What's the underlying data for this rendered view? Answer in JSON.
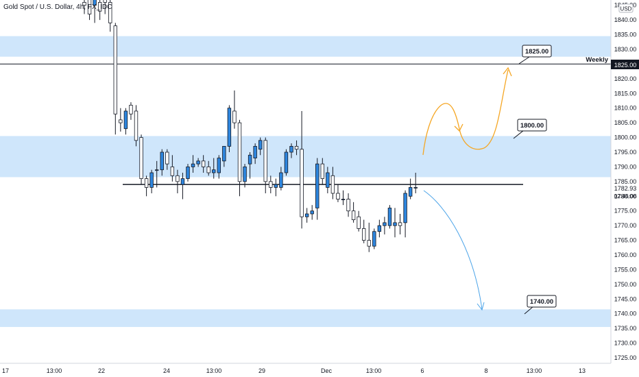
{
  "header": {
    "symbol_title": "Gold Spot / U.S. Dollar, 4h, FX_IDC",
    "currency": "USD"
  },
  "price_axis": {
    "last_price": "1782.93",
    "countdown": "02:46:06",
    "weekly_level": "1825.00"
  },
  "annotations": {
    "weekly_label": "Weekly",
    "target_upper": "1825.00",
    "target_mid": "1800.00",
    "target_lower": "1740.00"
  },
  "colors": {
    "zone": "#cfe6fb",
    "bull_candle": "#2e86de",
    "bear_candle": "#ffffff",
    "wick": "#131722",
    "up_path": "#f5a623",
    "down_path": "#4aa3e8"
  },
  "chart_data": {
    "type": "candlestick",
    "title": "Gold Spot / U.S. Dollar, 4h, FX_IDC",
    "ylim": [
      1722,
      1849
    ],
    "y_ticks": [
      "1845.00",
      "1840.00",
      "1835.00",
      "1830.00",
      "1825.00",
      "1820.00",
      "1815.00",
      "1810.00",
      "1805.00",
      "1800.00",
      "1795.00",
      "1790.00",
      "1785.00",
      "1780.00",
      "1775.00",
      "1770.00",
      "1765.00",
      "1760.00",
      "1755.00",
      "1750.00",
      "1745.00",
      "1740.00",
      "1735.00",
      "1730.00",
      "1725.00"
    ],
    "x_ticks": [
      "17",
      "13:00",
      "22",
      "24",
      "13:00",
      "29",
      "Dec",
      "13:00",
      "6",
      "8",
      "13:00",
      "13"
    ],
    "zones": [
      {
        "low": 1827.5,
        "high": 1834.5
      },
      {
        "low": 1786.5,
        "high": 1800.5
      },
      {
        "low": 1735.5,
        "high": 1741.5
      }
    ],
    "horizontal_lines": [
      {
        "price": 1825.0,
        "label": "Weekly"
      },
      {
        "price": 1784.0,
        "label": ""
      }
    ],
    "candles": [
      {
        "o": 1846,
        "h": 1849,
        "l": 1842,
        "c": 1845
      },
      {
        "o": 1847,
        "h": 1849,
        "l": 1840,
        "c": 1842
      },
      {
        "o": 1845,
        "h": 1849,
        "l": 1839,
        "c": 1848
      },
      {
        "o": 1846,
        "h": 1849,
        "l": 1840,
        "c": 1843
      },
      {
        "o": 1848,
        "h": 1849,
        "l": 1842,
        "c": 1846
      },
      {
        "o": 1846,
        "h": 1849,
        "l": 1836,
        "c": 1839
      },
      {
        "o": 1838,
        "h": 1839,
        "l": 1801,
        "c": 1808
      },
      {
        "o": 1806,
        "h": 1810,
        "l": 1802,
        "c": 1805
      },
      {
        "o": 1803,
        "h": 1810,
        "l": 1801,
        "c": 1809
      },
      {
        "o": 1811,
        "h": 1812,
        "l": 1806,
        "c": 1808
      },
      {
        "o": 1809,
        "h": 1811,
        "l": 1797,
        "c": 1799
      },
      {
        "o": 1800,
        "h": 1801,
        "l": 1784,
        "c": 1786
      },
      {
        "o": 1786,
        "h": 1787,
        "l": 1780,
        "c": 1783
      },
      {
        "o": 1783,
        "h": 1789,
        "l": 1781,
        "c": 1788
      },
      {
        "o": 1789,
        "h": 1792,
        "l": 1783,
        "c": 1789
      },
      {
        "o": 1789,
        "h": 1796,
        "l": 1787,
        "c": 1795
      },
      {
        "o": 1795,
        "h": 1796,
        "l": 1789,
        "c": 1791
      },
      {
        "o": 1790,
        "h": 1794,
        "l": 1785,
        "c": 1787
      },
      {
        "o": 1787,
        "h": 1789,
        "l": 1781,
        "c": 1785
      },
      {
        "o": 1784,
        "h": 1788,
        "l": 1779,
        "c": 1786
      },
      {
        "o": 1786,
        "h": 1791,
        "l": 1785,
        "c": 1790
      },
      {
        "o": 1790,
        "h": 1794,
        "l": 1788,
        "c": 1791
      },
      {
        "o": 1791,
        "h": 1793,
        "l": 1790,
        "c": 1792
      },
      {
        "o": 1792,
        "h": 1794,
        "l": 1788,
        "c": 1790
      },
      {
        "o": 1790,
        "h": 1792,
        "l": 1787,
        "c": 1788
      },
      {
        "o": 1788,
        "h": 1793,
        "l": 1786,
        "c": 1789
      },
      {
        "o": 1788,
        "h": 1794,
        "l": 1786,
        "c": 1793
      },
      {
        "o": 1792,
        "h": 1797,
        "l": 1790,
        "c": 1797
      },
      {
        "o": 1797,
        "h": 1811,
        "l": 1795,
        "c": 1810
      },
      {
        "o": 1809,
        "h": 1816,
        "l": 1803,
        "c": 1805
      },
      {
        "o": 1805,
        "h": 1806,
        "l": 1780,
        "c": 1785
      },
      {
        "o": 1785,
        "h": 1791,
        "l": 1783,
        "c": 1790
      },
      {
        "o": 1791,
        "h": 1795,
        "l": 1786,
        "c": 1794
      },
      {
        "o": 1793,
        "h": 1798,
        "l": 1791,
        "c": 1797
      },
      {
        "o": 1796,
        "h": 1800,
        "l": 1794,
        "c": 1799
      },
      {
        "o": 1799,
        "h": 1800,
        "l": 1781,
        "c": 1785
      },
      {
        "o": 1785,
        "h": 1787,
        "l": 1781,
        "c": 1783
      },
      {
        "o": 1783,
        "h": 1786,
        "l": 1780,
        "c": 1784
      },
      {
        "o": 1783,
        "h": 1790,
        "l": 1782,
        "c": 1788
      },
      {
        "o": 1788,
        "h": 1796,
        "l": 1787,
        "c": 1795
      },
      {
        "o": 1795,
        "h": 1798,
        "l": 1793,
        "c": 1797
      },
      {
        "o": 1797,
        "h": 1799,
        "l": 1794,
        "c": 1796
      },
      {
        "o": 1796,
        "h": 1809,
        "l": 1769,
        "c": 1773
      },
      {
        "o": 1773,
        "h": 1776,
        "l": 1771,
        "c": 1774
      },
      {
        "o": 1774,
        "h": 1777,
        "l": 1772,
        "c": 1775
      },
      {
        "o": 1776,
        "h": 1793,
        "l": 1772,
        "c": 1791
      },
      {
        "o": 1791,
        "h": 1793,
        "l": 1784,
        "c": 1786
      },
      {
        "o": 1783,
        "h": 1790,
        "l": 1781,
        "c": 1788
      },
      {
        "o": 1787,
        "h": 1790,
        "l": 1779,
        "c": 1781
      },
      {
        "o": 1781,
        "h": 1784,
        "l": 1778,
        "c": 1779
      },
      {
        "o": 1779,
        "h": 1782,
        "l": 1777,
        "c": 1779
      },
      {
        "o": 1779,
        "h": 1781,
        "l": 1773,
        "c": 1775
      },
      {
        "o": 1775,
        "h": 1778,
        "l": 1771,
        "c": 1772
      },
      {
        "o": 1773,
        "h": 1775,
        "l": 1768,
        "c": 1769
      },
      {
        "o": 1769,
        "h": 1772,
        "l": 1764,
        "c": 1765
      },
      {
        "o": 1765,
        "h": 1771,
        "l": 1761,
        "c": 1763
      },
      {
        "o": 1763,
        "h": 1769,
        "l": 1762,
        "c": 1768
      },
      {
        "o": 1768,
        "h": 1772,
        "l": 1766,
        "c": 1770
      },
      {
        "o": 1770,
        "h": 1773,
        "l": 1767,
        "c": 1771
      },
      {
        "o": 1770,
        "h": 1777,
        "l": 1769,
        "c": 1776
      },
      {
        "o": 1770,
        "h": 1776,
        "l": 1766,
        "c": 1771
      },
      {
        "o": 1771,
        "h": 1774,
        "l": 1767,
        "c": 1770
      },
      {
        "o": 1771,
        "h": 1782,
        "l": 1766,
        "c": 1781
      },
      {
        "o": 1780,
        "h": 1786,
        "l": 1779,
        "c": 1783
      },
      {
        "o": 1783,
        "h": 1788,
        "l": 1781,
        "c": 1783
      }
    ]
  }
}
